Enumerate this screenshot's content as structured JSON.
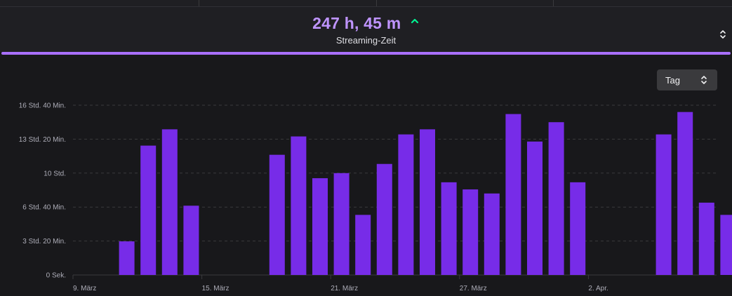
{
  "header": {
    "metric_value": "247 h, 45 m",
    "metric_label": "Streaming-Zeit",
    "trend": "up"
  },
  "controls": {
    "granularity": "Tag"
  },
  "colors": {
    "bar": "#772ce8",
    "accent": "#a970ff",
    "metric_value": "#bf94ff",
    "trend_up": "#00f593",
    "background": "#18181b",
    "panel": "#1f1f23",
    "grid": "#3a3a3d",
    "tick_text": "#adadb8"
  },
  "icons": {
    "trend": "trend-up-icon",
    "sort": "sort-icon",
    "select": "chevron-up-down-icon"
  },
  "chart_data": {
    "type": "bar",
    "title": "",
    "xlabel": "",
    "ylabel": "",
    "ylim_hours": [
      0,
      16.6667
    ],
    "grid": true,
    "y_ticks": [
      {
        "hours": 0,
        "label": "0 Sek."
      },
      {
        "hours": 3.3333,
        "label": "3 Std. 20 Min."
      },
      {
        "hours": 6.6667,
        "label": "6 Std. 40 Min."
      },
      {
        "hours": 10,
        "label": "10 Std."
      },
      {
        "hours": 13.3333,
        "label": "13 Std. 20 Min."
      },
      {
        "hours": 16.6667,
        "label": "16 Std. 40 Min."
      }
    ],
    "x_ticks": [
      {
        "date": "2024-03-09",
        "label": "9. März"
      },
      {
        "date": "2024-03-15",
        "label": "15. März"
      },
      {
        "date": "2024-03-21",
        "label": "21. März"
      },
      {
        "date": "2024-03-27",
        "label": "27. März"
      },
      {
        "date": "2024-04-02",
        "label": "2. Apr."
      }
    ],
    "x_range": [
      "2024-03-09",
      "2024-04-07"
    ],
    "series": [
      {
        "values": [
          {
            "date": "2024-03-10",
            "hours": 3.3
          },
          {
            "date": "2024-03-11",
            "hours": 12.7
          },
          {
            "date": "2024-03-12",
            "hours": 14.3
          },
          {
            "date": "2024-03-13",
            "hours": 6.8
          },
          {
            "date": "2024-03-17",
            "hours": 11.8
          },
          {
            "date": "2024-03-18",
            "hours": 13.6
          },
          {
            "date": "2024-03-19",
            "hours": 9.5
          },
          {
            "date": "2024-03-20",
            "hours": 10.0
          },
          {
            "date": "2024-03-21",
            "hours": 5.9
          },
          {
            "date": "2024-03-22",
            "hours": 10.9
          },
          {
            "date": "2024-03-23",
            "hours": 13.8
          },
          {
            "date": "2024-03-24",
            "hours": 14.3
          },
          {
            "date": "2024-03-25",
            "hours": 9.1
          },
          {
            "date": "2024-03-26",
            "hours": 8.4
          },
          {
            "date": "2024-03-27",
            "hours": 8.0
          },
          {
            "date": "2024-03-28",
            "hours": 15.8
          },
          {
            "date": "2024-03-29",
            "hours": 13.1
          },
          {
            "date": "2024-03-30",
            "hours": 15.0
          },
          {
            "date": "2024-03-31",
            "hours": 9.1
          },
          {
            "date": "2024-04-04",
            "hours": 13.8
          },
          {
            "date": "2024-04-05",
            "hours": 16.0
          },
          {
            "date": "2024-04-06",
            "hours": 7.1
          },
          {
            "date": "2024-04-07",
            "hours": 5.9
          }
        ]
      }
    ]
  }
}
